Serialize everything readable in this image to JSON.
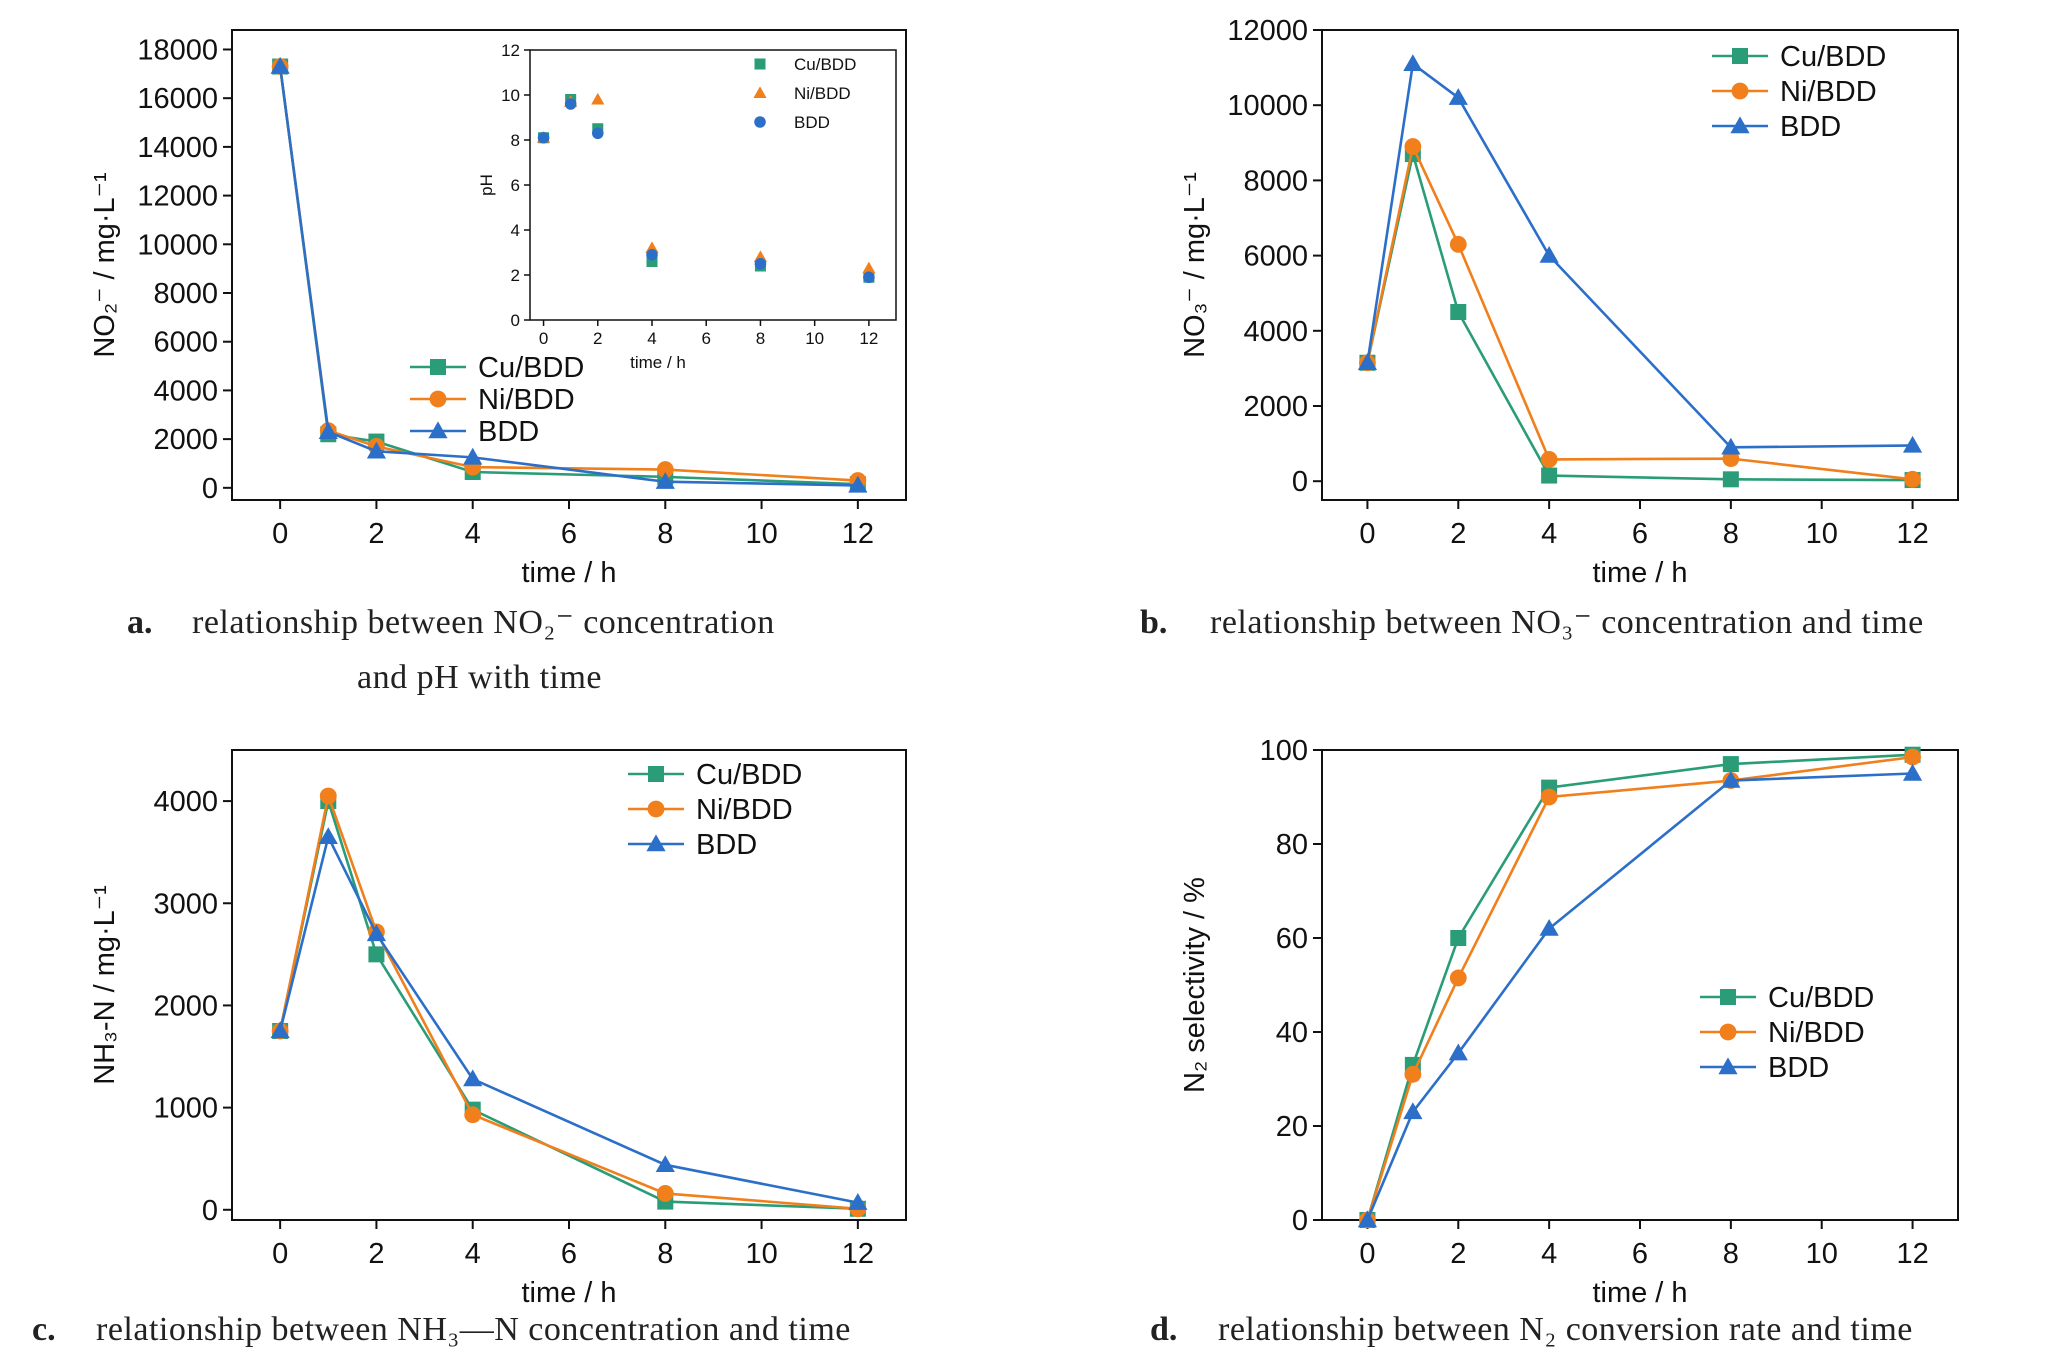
{
  "colors": {
    "Cu/BDD": "#2a9d78",
    "Ni/BDD": "#f07f1c",
    "BDD": "#2b6fc9",
    "axis": "#111111"
  },
  "captions": {
    "a_letter": "a.",
    "a_line1": "relationship between NO₂⁻ concentration",
    "a_line2": "and pH with time",
    "b_letter": "b.",
    "b_line": "relationship between NO₃⁻ concentration and time",
    "c_letter": "c.",
    "c_line": "relationship between NH₃—N concentration and time",
    "d_letter": "d.",
    "d_line": "relationship between N₂ conversion rate and time"
  },
  "chart_data": [
    {
      "id": "a",
      "type": "line",
      "xlabel": "time / h",
      "ylabel": "NO₂⁻ / mg·L⁻¹",
      "x": [
        0,
        1,
        2,
        4,
        8,
        12
      ],
      "xticks": [
        0,
        2,
        4,
        6,
        8,
        10,
        12
      ],
      "yticks": [
        0,
        2000,
        4000,
        6000,
        8000,
        10000,
        12000,
        14000,
        16000,
        18000
      ],
      "xlim": [
        -1,
        13
      ],
      "ylim": [
        -500,
        18800
      ],
      "legend_position": "lower-center",
      "series": [
        {
          "name": "Cu/BDD",
          "marker": "square",
          "values": [
            17300,
            2200,
            1900,
            650,
            450,
            150
          ]
        },
        {
          "name": "Ni/BDD",
          "marker": "circle",
          "values": [
            17300,
            2350,
            1700,
            850,
            750,
            300
          ]
        },
        {
          "name": "BDD",
          "marker": "triangle",
          "values": [
            17300,
            2300,
            1500,
            1250,
            250,
            100
          ]
        }
      ],
      "inset": {
        "type": "scatter",
        "xlabel": "time / h",
        "ylabel": "pH",
        "x": [
          0,
          1,
          2,
          4,
          8,
          12
        ],
        "xticks": [
          0,
          2,
          4,
          6,
          8,
          10,
          12
        ],
        "yticks": [
          0,
          2,
          4,
          6,
          8,
          10,
          12
        ],
        "xlim": [
          -0.5,
          13
        ],
        "ylim": [
          0,
          12
        ],
        "legend_position": "top-right",
        "series": [
          {
            "name": "Cu/BDD",
            "marker": "square",
            "values": [
              8.1,
              9.8,
              8.5,
              2.6,
              2.4,
              1.9
            ]
          },
          {
            "name": "Ni/BDD",
            "marker": "triangle",
            "values": [
              8.1,
              9.7,
              9.8,
              3.2,
              2.8,
              2.3
            ]
          },
          {
            "name": "BDD",
            "marker": "circle",
            "values": [
              8.1,
              9.6,
              8.3,
              2.9,
              2.5,
              1.9
            ]
          }
        ]
      }
    },
    {
      "id": "b",
      "type": "line",
      "xlabel": "time / h",
      "ylabel": "NO₃⁻ / mg·L⁻¹",
      "x": [
        0,
        1,
        2,
        4,
        8,
        12
      ],
      "xticks": [
        0,
        2,
        4,
        6,
        8,
        10,
        12
      ],
      "yticks": [
        0,
        2000,
        4000,
        6000,
        8000,
        10000,
        12000
      ],
      "xlim": [
        -1,
        13
      ],
      "ylim": [
        -500,
        12000
      ],
      "legend_position": "top-right",
      "series": [
        {
          "name": "Cu/BDD",
          "marker": "square",
          "values": [
            3150,
            8700,
            4500,
            150,
            50,
            30
          ]
        },
        {
          "name": "Ni/BDD",
          "marker": "circle",
          "values": [
            3150,
            8900,
            6300,
            580,
            600,
            50
          ]
        },
        {
          "name": "BDD",
          "marker": "triangle",
          "values": [
            3150,
            11100,
            10200,
            6000,
            900,
            950
          ]
        }
      ]
    },
    {
      "id": "c",
      "type": "line",
      "xlabel": "time / h",
      "ylabel": "NH₃-N / mg·L⁻¹",
      "x": [
        0,
        1,
        2,
        4,
        8,
        12
      ],
      "xticks": [
        0,
        2,
        4,
        6,
        8,
        10,
        12
      ],
      "yticks": [
        0,
        1000,
        2000,
        3000,
        4000
      ],
      "xlim": [
        -1,
        13
      ],
      "ylim": [
        -100,
        4500
      ],
      "legend_position": "top-right",
      "series": [
        {
          "name": "Cu/BDD",
          "marker": "square",
          "values": [
            1750,
            4000,
            2500,
            980,
            80,
            10
          ]
        },
        {
          "name": "Ni/BDD",
          "marker": "circle",
          "values": [
            1750,
            4050,
            2720,
            930,
            160,
            10
          ]
        },
        {
          "name": "BDD",
          "marker": "triangle",
          "values": [
            1750,
            3650,
            2700,
            1280,
            440,
            70
          ]
        }
      ]
    },
    {
      "id": "d",
      "type": "line",
      "xlabel": "time / h",
      "ylabel": "N₂ selectivity / %",
      "x": [
        0,
        1,
        2,
        4,
        8,
        12
      ],
      "xticks": [
        0,
        2,
        4,
        6,
        8,
        10,
        12
      ],
      "yticks": [
        0,
        20,
        40,
        60,
        80,
        100
      ],
      "xlim": [
        -1,
        13
      ],
      "ylim": [
        0,
        100
      ],
      "legend_position": "center-right",
      "series": [
        {
          "name": "Cu/BDD",
          "marker": "square",
          "values": [
            0,
            33,
            60,
            92,
            97,
            99
          ]
        },
        {
          "name": "Ni/BDD",
          "marker": "circle",
          "values": [
            0,
            31,
            51.5,
            90,
            93.5,
            98.5
          ]
        },
        {
          "name": "BDD",
          "marker": "triangle",
          "values": [
            0,
            23,
            35.5,
            62,
            93.5,
            95
          ]
        }
      ]
    }
  ]
}
